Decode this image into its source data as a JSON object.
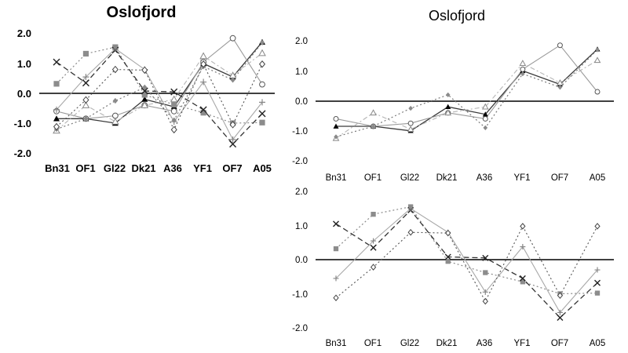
{
  "chart_data": [
    {
      "type": "line",
      "title": "Oslofjord",
      "categories": [
        "Bn31",
        "OF1",
        "Gl22",
        "Dk21",
        "A36",
        "YF1",
        "OF7",
        "A05"
      ],
      "ylim": [
        -2.0,
        2.0
      ],
      "yticks": [
        "2.0",
        "1.0",
        "0.0",
        "-1.0",
        "-2.0"
      ],
      "series": [
        {
          "name": "filled-triangle",
          "values": [
            -0.85,
            -0.85,
            -1.0,
            -0.2,
            -0.45,
            1.0,
            0.55,
            1.72
          ]
        },
        {
          "name": "open-circle",
          "values": [
            -0.6,
            -0.85,
            -0.75,
            -0.4,
            -0.6,
            1.05,
            1.85,
            0.3
          ]
        },
        {
          "name": "open-triangle",
          "values": [
            -1.25,
            -0.4,
            -0.95,
            -0.4,
            -0.2,
            1.25,
            0.6,
            1.35
          ]
        },
        {
          "name": "filled-diamond",
          "values": [
            -1.2,
            -0.85,
            -0.25,
            0.2,
            -0.9,
            0.9,
            0.45,
            1.7
          ]
        },
        {
          "name": "grey-square",
          "values": [
            0.32,
            1.33,
            1.55,
            -0.05,
            -0.38,
            -0.65,
            -1.0,
            -0.98
          ]
        },
        {
          "name": "cross",
          "values": [
            1.05,
            0.35,
            1.45,
            0.08,
            0.05,
            -0.55,
            -1.7,
            -0.68
          ]
        },
        {
          "name": "plus",
          "values": [
            -0.55,
            0.55,
            1.5,
            0.8,
            -0.95,
            0.38,
            -1.55,
            -0.3
          ]
        },
        {
          "name": "open-diamond",
          "values": [
            -1.12,
            -0.22,
            0.8,
            0.78,
            -1.22,
            0.98,
            -1.05,
            0.98
          ]
        }
      ]
    },
    {
      "type": "line",
      "title": "Oslofjord",
      "categories": [
        "Bn31",
        "OF1",
        "Gl22",
        "Dk21",
        "A36",
        "YF1",
        "OF7",
        "A05"
      ],
      "ylim": [
        -2.0,
        2.0
      ],
      "yticks": [
        "2.0",
        "1.0",
        "0.0",
        "-1.0",
        "-2.0"
      ],
      "series": [
        {
          "name": "filled-triangle",
          "values": [
            -0.85,
            -0.85,
            -1.0,
            -0.2,
            -0.45,
            1.0,
            0.55,
            1.72
          ]
        },
        {
          "name": "open-circle",
          "values": [
            -0.6,
            -0.85,
            -0.75,
            -0.4,
            -0.6,
            1.05,
            1.85,
            0.3
          ]
        },
        {
          "name": "open-triangle",
          "values": [
            -1.25,
            -0.4,
            -0.95,
            -0.4,
            -0.2,
            1.25,
            0.6,
            1.35
          ]
        },
        {
          "name": "filled-diamond",
          "values": [
            -1.2,
            -0.85,
            -0.25,
            0.2,
            -0.9,
            0.9,
            0.45,
            1.7
          ]
        }
      ]
    },
    {
      "type": "line",
      "title": "",
      "categories": [
        "Bn31",
        "OF1",
        "Gl22",
        "Dk21",
        "A36",
        "YF1",
        "OF7",
        "A05"
      ],
      "ylim": [
        -2.0,
        2.0
      ],
      "yticks": [
        "2.0",
        "1.0",
        "0.0",
        "-1.0",
        "-2.0"
      ],
      "series": [
        {
          "name": "grey-square",
          "values": [
            0.32,
            1.33,
            1.55,
            -0.05,
            -0.38,
            -0.65,
            -1.0,
            -0.98
          ]
        },
        {
          "name": "cross",
          "values": [
            1.05,
            0.35,
            1.45,
            0.08,
            0.05,
            -0.55,
            -1.7,
            -0.68
          ]
        },
        {
          "name": "plus",
          "values": [
            -0.55,
            0.55,
            1.5,
            0.8,
            -0.95,
            0.38,
            -1.55,
            -0.3
          ]
        },
        {
          "name": "open-diamond",
          "values": [
            -1.12,
            -0.22,
            0.8,
            0.78,
            -1.22,
            0.98,
            -1.05,
            0.98
          ]
        }
      ]
    }
  ]
}
